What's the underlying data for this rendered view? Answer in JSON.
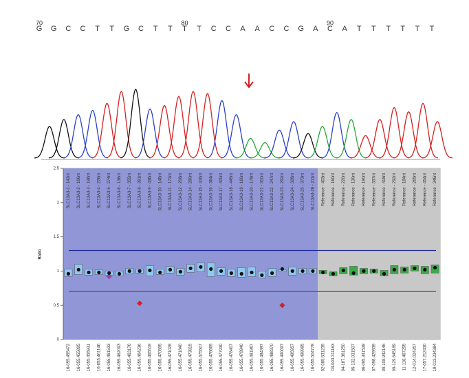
{
  "chart_data": [
    {
      "type": "chromatogram",
      "bases": [
        "G",
        "G",
        "C",
        "C",
        "T",
        "T",
        "G",
        "C",
        "T",
        "T",
        "T",
        "T",
        "C",
        "C",
        "A",
        "A",
        "C",
        "C",
        "G",
        "A",
        "C",
        "A",
        "T",
        "T",
        "T",
        "T",
        "T",
        "T"
      ],
      "position_labels": [
        {
          "index": 0,
          "label": "70"
        },
        {
          "index": 10,
          "label": "80"
        },
        {
          "index": 20,
          "label": "90"
        }
      ],
      "base_colors": {
        "G": "#111111",
        "C": "#2b3fc8",
        "T": "#d42020",
        "A": "#25a83a"
      },
      "peak_heights": [
        45,
        55,
        62,
        68,
        78,
        95,
        98,
        70,
        75,
        88,
        95,
        92,
        82,
        62,
        28,
        22,
        40,
        52,
        35,
        45,
        65,
        55,
        32,
        55,
        72,
        66,
        78,
        52
      ]
    },
    {
      "type": "ratio-box",
      "y_label": "Ratio",
      "ylim": [
        0,
        2.5
      ],
      "yticks": [
        0,
        0.5,
        1,
        1.5,
        2,
        2.5
      ],
      "upper_threshold": {
        "value": 1.3,
        "color": "#1f2a9c"
      },
      "lower_threshold": {
        "value": 0.7,
        "color": "#d42020"
      },
      "groups": [
        {
          "color": "#9096d6",
          "box_color": "#8ec8ee",
          "probes": [
            {
              "label": "SLC13A3-1 - 142nt",
              "id": "16-055.455472",
              "value": 0.96,
              "low": 0.92,
              "high": 1.03
            },
            {
              "label": "SLC13A3-2 - 166nt",
              "id": "16-055.455895",
              "value": 1.02,
              "low": 0.95,
              "high": 1.1
            },
            {
              "label": "SLC13A3-3 - 196nt",
              "id": "16-055.455931",
              "value": 0.98,
              "low": 0.94,
              "high": 1.03
            },
            {
              "label": "SLC13A3-4 - 226nt",
              "id": "16-055.461146",
              "value": 0.98,
              "low": 0.95,
              "high": 1.02
            },
            {
              "label": "SLC13A3-5 - 274nt",
              "id": "16-055.461533",
              "value": 0.97,
              "low": 0.94,
              "high": 1.0,
              "sample": 0.92,
              "sample_color": "#a040b0"
            },
            {
              "label": "SLC13A3-6 - 136nt",
              "id": "16-055.462093",
              "value": 0.96,
              "low": 0.93,
              "high": 1.0
            },
            {
              "label": "SLC13A3-7 - 355nt",
              "id": "16-055.463176",
              "value": 1.0,
              "low": 0.96,
              "high": 1.04
            },
            {
              "label": "SLC13A3-8 - 391nt",
              "id": "16-055.464236",
              "value": 1.0,
              "low": 0.97,
              "high": 1.03,
              "sample": 0.53,
              "sample_color": "#d42020"
            },
            {
              "label": "SLC13A3-9 - 436nt",
              "id": "16-055.465519",
              "value": 1.01,
              "low": 0.93,
              "high": 1.08
            },
            {
              "label": "SLC13A3-10 - 148nt",
              "id": "16-055.470595",
              "value": 0.98,
              "low": 0.95,
              "high": 1.03
            },
            {
              "label": "SLC13A3-11 - 172nt",
              "id": "16-055.471028",
              "value": 1.02,
              "low": 0.97,
              "high": 1.07
            },
            {
              "label": "SLC13A3-12 - 208nt",
              "id": "16-055.471840",
              "value": 0.99,
              "low": 0.94,
              "high": 1.04
            },
            {
              "label": "SLC13A3-14 - 280nt",
              "id": "16-055.473815",
              "value": 1.04,
              "low": 0.98,
              "high": 1.1
            },
            {
              "label": "SLC13A3-15 - 316nt",
              "id": "16-055.475507",
              "value": 1.06,
              "low": 0.99,
              "high": 1.12
            },
            {
              "label": "SLC13A3-16 - 364nt",
              "id": "16-055.476669",
              "value": 1.03,
              "low": 0.92,
              "high": 1.12
            },
            {
              "label": "SLC13A3-17 - 400nt",
              "id": "16-055.477930",
              "value": 1.0,
              "low": 0.94,
              "high": 1.05
            },
            {
              "label": "SLC13A3-18 - 445nt",
              "id": "16-055.478407",
              "value": 0.97,
              "low": 0.92,
              "high": 1.03
            },
            {
              "label": "SLC13A3-19 - 160nt",
              "id": "16-055.478940",
              "value": 0.96,
              "low": 0.91,
              "high": 1.05
            },
            {
              "label": "SLC13A3-20 - 178nt",
              "id": "16-055.481867",
              "value": 0.98,
              "low": 0.92,
              "high": 1.06
            },
            {
              "label": "SLC13A3-21 - 310nt",
              "id": "16-055.484397",
              "value": 0.94,
              "low": 0.9,
              "high": 1.0
            },
            {
              "label": "SLC13A3-22 - 247nt",
              "id": "16-055.488370",
              "value": 0.97,
              "low": 0.92,
              "high": 1.04
            },
            {
              "label": "SLC13A3-23 - 292nt",
              "id": "16-055.490097",
              "value": 1.03,
              "low": 0.99,
              "high": 1.02,
              "sample": 0.5,
              "sample_color": "#d42020"
            },
            {
              "label": "SLC13A3-24 - 328nt",
              "id": "16-055.495957",
              "value": 1.0,
              "low": 0.94,
              "high": 1.06
            },
            {
              "label": "SLC13A3-25 - 373nt",
              "id": "16-055.499985",
              "value": 1.0,
              "low": 0.96,
              "high": 1.04
            },
            {
              "label": "SLC13A3-26 - 211nt",
              "id": "16-055.504778",
              "value": 1.0,
              "low": 0.96,
              "high": 1.04
            }
          ]
        },
        {
          "color": "#c8c8c8",
          "box_color": "#3ea84a",
          "probes": [
            {
              "label": "Reference - 403nt",
              "id": "02-085.531239",
              "value": 0.98,
              "low": 0.96,
              "high": 1.01
            },
            {
              "label": "Reference - 160nt",
              "id": "03-003.311163",
              "value": 0.96,
              "low": 0.93,
              "high": 0.99
            },
            {
              "label": "Reference - 220nt",
              "id": "04-187.361250",
              "value": 1.01,
              "low": 0.96,
              "high": 1.05
            },
            {
              "label": "Reference - 130nt",
              "id": "05-132.031507",
              "value": 0.97,
              "low": 0.94,
              "high": 1.07
            },
            {
              "label": "Reference - 190nt",
              "id": "06-095.341538",
              "value": 1.0,
              "low": 0.96,
              "high": 1.04
            },
            {
              "label": "Reference - 337nt",
              "id": "07-098.429939",
              "value": 1.0,
              "low": 0.97,
              "high": 1.03
            },
            {
              "label": "Reference - 418nt",
              "id": "09-108.942146",
              "value": 0.96,
              "low": 0.93,
              "high": 1.01
            },
            {
              "label": "Reference - 292nt",
              "id": "09-129.645189",
              "value": 1.02,
              "low": 0.96,
              "high": 1.08
            },
            {
              "label": "Reference - 184nt",
              "id": "11-118.467295",
              "value": 1.02,
              "low": 0.97,
              "high": 1.06
            },
            {
              "label": "Reference - 265nt",
              "id": "12-014.024357",
              "value": 1.04,
              "low": 1.0,
              "high": 1.08
            },
            {
              "label": "Reference - 454nt",
              "id": "17-057.212430",
              "value": 1.02,
              "low": 0.96,
              "high": 1.07
            },
            {
              "label": "Reference - 346nt",
              "id": "19-013.234384",
              "value": 1.05,
              "low": 0.97,
              "high": 1.09
            }
          ]
        }
      ]
    }
  ]
}
